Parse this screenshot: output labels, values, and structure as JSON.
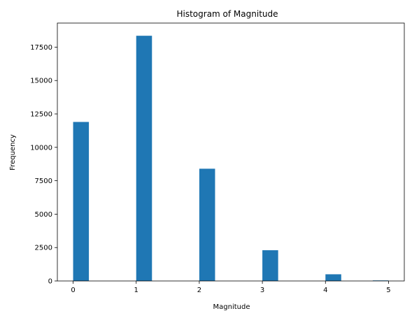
{
  "chart_data": {
    "type": "bar",
    "title": "Histogram of Magnitude",
    "xlabel": "Magnitude",
    "ylabel": "Frequency",
    "bin_width": 0.25,
    "bins": [
      {
        "x_start": 0.0,
        "x_end": 0.25,
        "value": 11900
      },
      {
        "x_start": 1.0,
        "x_end": 1.25,
        "value": 18350
      },
      {
        "x_start": 2.0,
        "x_end": 2.25,
        "value": 8400
      },
      {
        "x_start": 3.0,
        "x_end": 3.25,
        "value": 2300
      },
      {
        "x_start": 4.0,
        "x_end": 4.25,
        "value": 500
      },
      {
        "x_start": 4.75,
        "x_end": 5.0,
        "value": 40
      }
    ],
    "xlim": [
      -0.25,
      5.25
    ],
    "ylim": [
      0,
      19300
    ],
    "xticks": [
      0,
      1,
      2,
      3,
      4,
      5
    ],
    "xtick_labels": [
      "0",
      "1",
      "2",
      "3",
      "4",
      "5"
    ],
    "yticks": [
      0,
      2500,
      5000,
      7500,
      10000,
      12500,
      15000,
      17500
    ],
    "ytick_labels": [
      "0",
      "2500",
      "5000",
      "7500",
      "10000",
      "12500",
      "15000",
      "17500"
    ],
    "grid": false,
    "bar_color": "#1f77b4"
  }
}
